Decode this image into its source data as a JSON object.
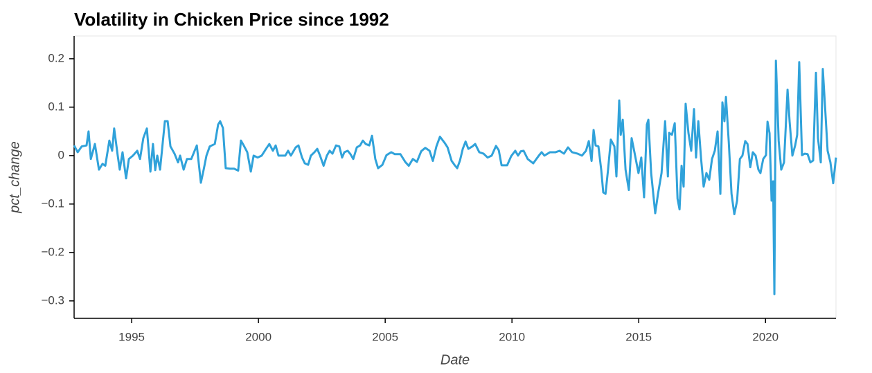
{
  "chart_data": {
    "type": "line",
    "title": "Volatility in Chicken Price since 1992",
    "x_label": "Date",
    "y_label": "pct_change",
    "color": "#30a2da",
    "xlim": [
      1992.73,
      2022.78
    ],
    "xticks": [
      1995,
      2000,
      2005,
      2010,
      2015,
      2020
    ],
    "ylim": [
      -0.336,
      0.247
    ],
    "yticks": [
      {
        "value": -0.3,
        "label": "−0.3"
      },
      {
        "value": -0.2,
        "label": "−0.2"
      },
      {
        "value": -0.1,
        "label": "−0.1"
      },
      0,
      0.1,
      0.2
    ],
    "x": [
      1992.73,
      1992.87,
      1993.03,
      1993.22,
      1993.3,
      1993.39,
      1993.55,
      1993.71,
      1993.85,
      1993.96,
      1994.12,
      1994.23,
      1994.31,
      1994.45,
      1994.53,
      1994.64,
      1994.78,
      1994.89,
      1995.05,
      1995.22,
      1995.33,
      1995.46,
      1995.6,
      1995.74,
      1995.84,
      1995.93,
      1996.01,
      1996.12,
      1996.31,
      1996.42,
      1996.53,
      1996.69,
      1996.83,
      1996.91,
      1997.05,
      1997.18,
      1997.35,
      1997.57,
      1997.73,
      1997.84,
      1997.95,
      1998.08,
      1998.28,
      1998.41,
      1998.49,
      1998.6,
      1998.71,
      1998.88,
      1999.04,
      1999.2,
      1999.31,
      1999.42,
      1999.56,
      1999.7,
      1999.81,
      1999.97,
      2000.13,
      2000.3,
      2000.43,
      2000.57,
      2000.68,
      2000.79,
      2001.06,
      2001.17,
      2001.28,
      2001.47,
      2001.58,
      2001.72,
      2001.83,
      2001.96,
      2002.07,
      2002.21,
      2002.32,
      2002.43,
      2002.57,
      2002.7,
      2002.81,
      2002.92,
      2003.06,
      2003.19,
      2003.3,
      2003.39,
      2003.52,
      2003.63,
      2003.74,
      2003.88,
      2004.01,
      2004.12,
      2004.23,
      2004.37,
      2004.48,
      2004.61,
      2004.72,
      2004.89,
      2005.05,
      2005.24,
      2005.38,
      2005.6,
      2005.79,
      2005.93,
      2006.09,
      2006.25,
      2006.42,
      2006.58,
      2006.75,
      2006.88,
      2007.02,
      2007.16,
      2007.35,
      2007.46,
      2007.62,
      2007.73,
      2007.84,
      2007.95,
      2008.06,
      2008.17,
      2008.28,
      2008.44,
      2008.55,
      2008.71,
      2008.88,
      2009.04,
      2009.2,
      2009.37,
      2009.48,
      2009.59,
      2009.81,
      2009.97,
      2010.13,
      2010.24,
      2010.35,
      2010.46,
      2010.62,
      2010.84,
      2011.06,
      2011.17,
      2011.28,
      2011.5,
      2011.72,
      2011.88,
      2012.05,
      2012.21,
      2012.37,
      2012.59,
      2012.76,
      2012.92,
      2013.03,
      2013.14,
      2013.22,
      2013.3,
      2013.41,
      2013.52,
      2013.6,
      2013.69,
      2013.79,
      2013.9,
      2014.04,
      2014.12,
      2014.23,
      2014.29,
      2014.37,
      2014.48,
      2014.61,
      2014.72,
      2014.83,
      2014.99,
      2015.1,
      2015.21,
      2015.32,
      2015.38,
      2015.49,
      2015.65,
      2015.76,
      2015.9,
      2016.04,
      2016.15,
      2016.2,
      2016.31,
      2016.42,
      2016.53,
      2016.61,
      2016.69,
      2016.77,
      2016.85,
      2016.96,
      2017.07,
      2017.18,
      2017.26,
      2017.35,
      2017.46,
      2017.56,
      2017.67,
      2017.78,
      2017.89,
      2018.0,
      2018.11,
      2018.22,
      2018.3,
      2018.38,
      2018.44,
      2018.55,
      2018.66,
      2018.77,
      2018.88,
      2018.99,
      2019.09,
      2019.2,
      2019.29,
      2019.4,
      2019.5,
      2019.61,
      2019.72,
      2019.8,
      2019.91,
      2020.02,
      2020.08,
      2020.16,
      2020.24,
      2020.3,
      2020.35,
      2020.41,
      2020.52,
      2020.62,
      2020.73,
      2020.87,
      2020.95,
      2021.06,
      2021.17,
      2021.25,
      2021.33,
      2021.44,
      2021.55,
      2021.66,
      2021.77,
      2021.88,
      2021.99,
      2022.07,
      2022.18,
      2022.26,
      2022.35,
      2022.45,
      2022.56,
      2022.67,
      2022.78
    ],
    "values": [
      0.021,
      0.007,
      0.019,
      0.021,
      0.05,
      -0.007,
      0.024,
      -0.029,
      -0.017,
      -0.021,
      0.031,
      0.01,
      0.056,
      0,
      -0.029,
      0.007,
      -0.047,
      -0.007,
      0,
      0.01,
      -0.007,
      0.036,
      0.056,
      -0.033,
      0.024,
      -0.03,
      0,
      -0.029,
      0.071,
      0.071,
      0.019,
      0.004,
      -0.014,
      0,
      -0.029,
      -0.007,
      -0.007,
      0.021,
      -0.056,
      -0.029,
      0,
      0.019,
      0.024,
      0.064,
      0.071,
      0.057,
      -0.026,
      -0.027,
      -0.027,
      -0.031,
      0.031,
      0.021,
      0.007,
      -0.033,
      0,
      -0.004,
      0,
      0.014,
      0.024,
      0.01,
      0.021,
      0,
      0,
      0.01,
      0,
      0.017,
      0.021,
      -0.004,
      -0.016,
      -0.019,
      0,
      0.007,
      0.014,
      0,
      -0.021,
      0,
      0.01,
      0.004,
      0.021,
      0.019,
      -0.004,
      0.007,
      0.01,
      0.003,
      -0.007,
      0.017,
      0.021,
      0.031,
      0.024,
      0.021,
      0.041,
      -0.007,
      -0.026,
      -0.019,
      0.001,
      0.007,
      0.003,
      0.003,
      -0.013,
      -0.021,
      -0.007,
      -0.013,
      0.009,
      0.016,
      0.01,
      -0.011,
      0.019,
      0.039,
      0.026,
      0.017,
      -0.011,
      -0.019,
      -0.026,
      -0.01,
      0.014,
      0.029,
      0.014,
      0.019,
      0.024,
      0.007,
      0.004,
      -0.004,
      0,
      0.02,
      0.011,
      -0.02,
      -0.02,
      -0.001,
      0.01,
      0,
      0.009,
      0.01,
      -0.007,
      -0.016,
      0,
      0.007,
      0,
      0.007,
      0.007,
      0.01,
      0.004,
      0.017,
      0.007,
      0.004,
      0,
      0.01,
      0.03,
      -0.011,
      0.053,
      0.021,
      0.019,
      -0.029,
      -0.076,
      -0.079,
      -0.029,
      0.033,
      0.019,
      -0.043,
      0.114,
      0.043,
      0.074,
      -0.029,
      -0.071,
      0.036,
      0.007,
      -0.036,
      -0.004,
      -0.086,
      0.064,
      0.074,
      -0.036,
      -0.119,
      -0.079,
      -0.036,
      0.071,
      -0.043,
      0.047,
      0.043,
      0.067,
      -0.089,
      -0.111,
      -0.021,
      -0.064,
      0.107,
      0.047,
      0.01,
      0.096,
      -0.004,
      0.071,
      -0.007,
      -0.064,
      -0.036,
      -0.05,
      -0.007,
      0.01,
      0.05,
      -0.079,
      0.11,
      0.071,
      0.121,
      0.029,
      -0.079,
      -0.121,
      -0.093,
      -0.007,
      0,
      0.03,
      0.024,
      -0.024,
      0.007,
      0,
      -0.029,
      -0.036,
      -0.007,
      0.001,
      0.07,
      0.046,
      -0.093,
      -0.053,
      -0.286,
      0.196,
      0.03,
      -0.029,
      -0.014,
      0.136,
      0.071,
      0,
      0.021,
      0.043,
      0.193,
      0.001,
      0.004,
      0.003,
      -0.014,
      -0.01,
      0.171,
      0.036,
      -0.014,
      0.179,
      0.1,
      0.01,
      -0.014,
      -0.057,
      -0.004
    ]
  }
}
